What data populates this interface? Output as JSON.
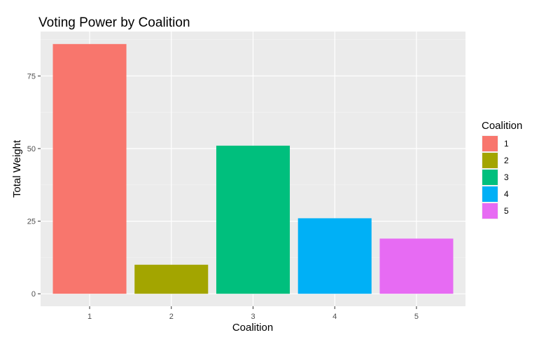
{
  "chart_data": {
    "type": "bar",
    "title": "Voting Power by Coalition",
    "xlabel": "Coalition",
    "ylabel": "Total Weight",
    "categories": [
      "1",
      "2",
      "3",
      "4",
      "5"
    ],
    "values": [
      86,
      10,
      51,
      26,
      19
    ],
    "colors": [
      "#F8766D",
      "#A3A500",
      "#00BF7D",
      "#00B0F6",
      "#E76BF3"
    ],
    "ylim": [
      -4.3,
      90.3
    ],
    "yticks": [
      0,
      25,
      50,
      75
    ],
    "ytick_labels": [
      "0",
      "25",
      "50",
      "75"
    ],
    "grid": true,
    "legend": {
      "title": "Coalition",
      "position": "right",
      "items": [
        "1",
        "2",
        "3",
        "4",
        "5"
      ]
    }
  }
}
